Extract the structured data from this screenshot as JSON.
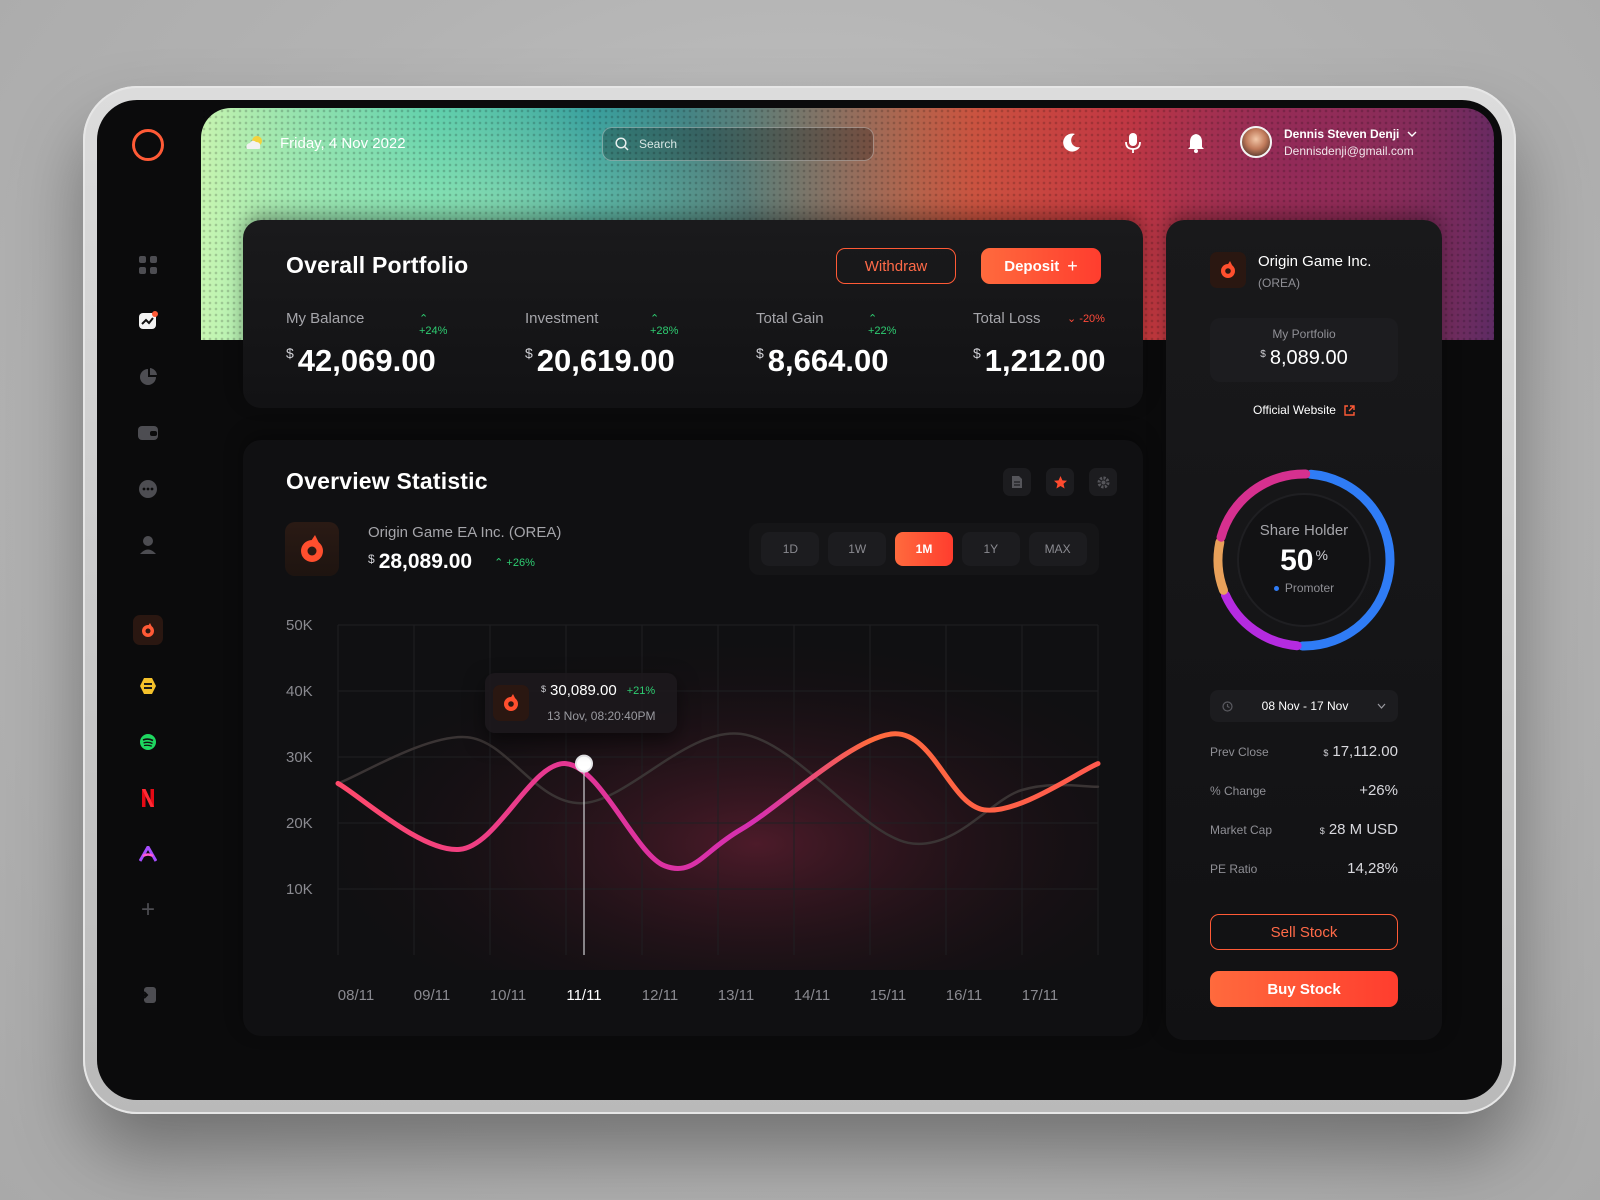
{
  "header": {
    "date": "Friday, 4 Nov 2022",
    "weather_icon": "cloud-sun-icon",
    "search_placeholder": "Search",
    "user": {
      "name": "Dennis Steven Denji",
      "email": "Dennisdenji@gmail.com"
    }
  },
  "sidebar": {
    "nav_icons": [
      "dashboard-icon",
      "chart-icon",
      "pie-chart-icon",
      "wallet-icon",
      "chat-icon",
      "profile-icon"
    ],
    "apps": [
      "origin-icon",
      "bumble-icon",
      "spotify-icon",
      "netflix-icon",
      "arc-icon"
    ],
    "add_label": "+",
    "logout_icon": "logout-icon"
  },
  "portfolio": {
    "title": "Overall Portfolio",
    "withdraw_label": "Withdraw",
    "deposit_label": "Deposit",
    "deposit_icon": "+",
    "stats": [
      {
        "label": "My Balance",
        "change": "+24%",
        "currency": "$",
        "value": "42,069.00",
        "trend": "up"
      },
      {
        "label": "Investment",
        "change": "+28%",
        "currency": "$",
        "value": "20,619.00",
        "trend": "up"
      },
      {
        "label": "Total Gain",
        "change": "+22%",
        "currency": "$",
        "value": "8,664.00",
        "trend": "up"
      },
      {
        "label": "Total Loss",
        "change": "-20%",
        "currency": "$",
        "value": "1,212.00",
        "trend": "down"
      }
    ]
  },
  "overview": {
    "title": "Overview Statistic",
    "company_name": "Origin Game EA Inc. (OREA)",
    "currency": "$",
    "price": "28,089.00",
    "change": "+26%",
    "ranges": [
      "1D",
      "1W",
      "1M",
      "1Y",
      "MAX"
    ],
    "active_range": "1M",
    "tooltip": {
      "currency": "$",
      "price": "30,089.00",
      "change": "+21%",
      "datetime": "13 Nov, 08:20:40PM"
    }
  },
  "chart_data": {
    "type": "line",
    "title": "",
    "xlabel": "",
    "ylabel": "",
    "categories": [
      "08/11",
      "09/11",
      "10/11",
      "11/11",
      "12/11",
      "13/11",
      "14/11",
      "15/11",
      "16/11",
      "17/11"
    ],
    "y_ticks": [
      "50K",
      "40K",
      "30K",
      "20K",
      "10K"
    ],
    "ylim": [
      0,
      50000
    ],
    "highlighted_category": "11/11",
    "series": [
      {
        "values": [
          26000,
          16000,
          29000,
          13500,
          19000,
          33500,
          22000,
          29000
        ],
        "x": [
          0,
          1.6,
          3,
          4.3,
          5.3,
          7.3,
          8.5,
          10
        ],
        "color": "#ff5a36",
        "style": "gradient"
      },
      {
        "values": [
          26000,
          33000,
          23000,
          33500,
          17000,
          25000,
          25500
        ],
        "x": [
          0,
          1.7,
          3.2,
          5.3,
          7.5,
          9,
          10
        ],
        "color": "#3a3434",
        "style": "ghost"
      }
    ],
    "grid": true
  },
  "right_panel": {
    "company": "Origin Game Inc.",
    "ticker": "(OREA)",
    "portfolio_label": "My Portfolio",
    "currency": "$",
    "portfolio_value": "8,089.00",
    "website_label": "Official Website",
    "donut": {
      "title": "Share Holder",
      "value": "50",
      "unit": "%",
      "legend": "Promoter",
      "segments": [
        {
          "fraction": 0.5,
          "color": "#2f7cf6"
        },
        {
          "fraction": 0.18,
          "color": "#b52be0"
        },
        {
          "fraction": 0.1,
          "color": "#e8a15a"
        },
        {
          "fraction": 0.22,
          "color": "#d6308f"
        }
      ]
    },
    "date_range": "08 Nov - 17 Nov",
    "details": [
      {
        "label": "Prev Close",
        "currency": "$",
        "value": "17,112.00"
      },
      {
        "label": "% Change",
        "currency": "",
        "value": "+26%"
      },
      {
        "label": "Market Cap",
        "currency": "$",
        "value": "28 M USD"
      },
      {
        "label": "PE Ratio",
        "currency": "",
        "value": "14,28%"
      }
    ],
    "sell_label": "Sell Stock",
    "buy_label": "Buy Stock"
  },
  "colors": {
    "accent": "#ff5a36",
    "positive": "#2ecc71",
    "negative": "#ff4a3a",
    "background": "#0b0b0c"
  }
}
